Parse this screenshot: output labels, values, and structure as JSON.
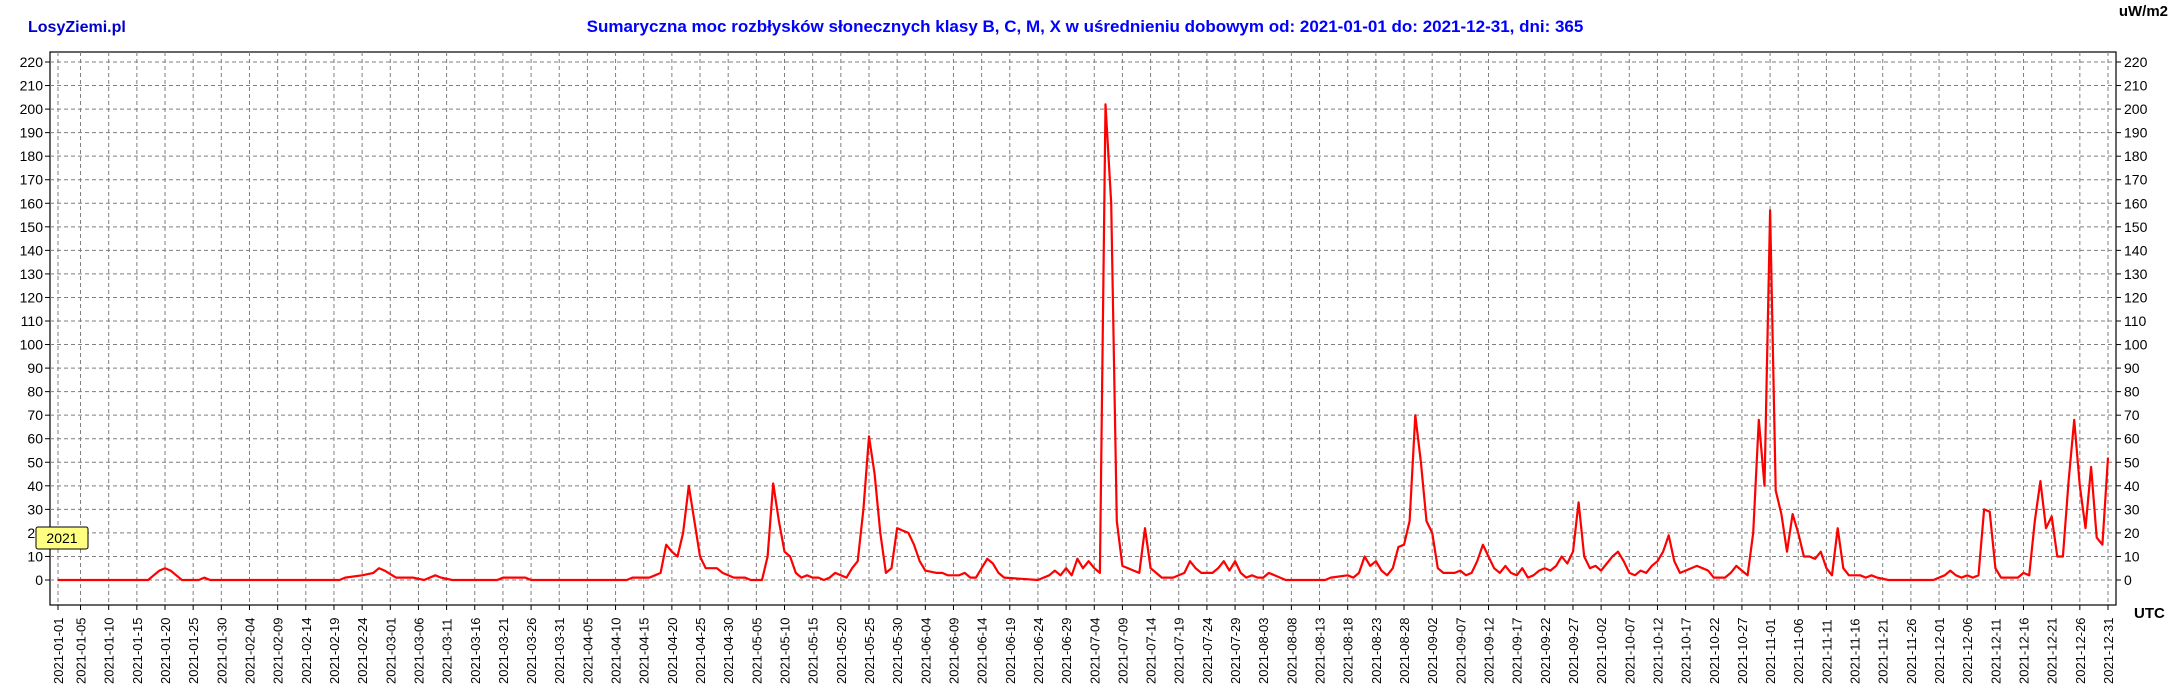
{
  "header": {
    "brand": "LosyZiemi.pl",
    "title": "Sumaryczna moc rozbłysków słonecznych klasy B, C, M, X w uśrednieniu dobowym od: 2021-01-01 do: 2021-12-31, dni: 365",
    "unit": "uW/m2",
    "x_unit": "UTC",
    "year_badge": "2021"
  },
  "colors": {
    "brand": "#0000cc",
    "title": "#0000ff",
    "line": "#ff0000",
    "badge": "#ffff80",
    "grid": "#7f7f7f"
  },
  "chart_data": {
    "type": "line",
    "title": "Sumaryczna moc rozbłysków słonecznych klasy B, C, M, X w uśrednieniu dobowym od: 2021-01-01 do: 2021-12-31, dni: 365",
    "xlabel": "UTC",
    "ylabel": "uW/m2",
    "ylim": [
      0,
      220
    ],
    "yticks": [
      0,
      10,
      20,
      30,
      40,
      50,
      60,
      70,
      80,
      90,
      100,
      110,
      120,
      130,
      140,
      150,
      160,
      170,
      180,
      190,
      200,
      210,
      220
    ],
    "grid": true,
    "xlim": [
      "2021-01-01",
      "2021-12-31"
    ],
    "xtick_labels": [
      "2021-01-01",
      "2021-01-05",
      "2021-01-10",
      "2021-01-15",
      "2021-01-20",
      "2021-01-25",
      "2021-01-30",
      "2021-02-04",
      "2021-02-09",
      "2021-02-14",
      "2021-02-19",
      "2021-02-24",
      "2021-03-01",
      "2021-03-06",
      "2021-03-11",
      "2021-03-16",
      "2021-03-21",
      "2021-03-26",
      "2021-03-31",
      "2021-04-05",
      "2021-04-10",
      "2021-04-15",
      "2021-04-20",
      "2021-04-25",
      "2021-04-30",
      "2021-05-05",
      "2021-05-10",
      "2021-05-15",
      "2021-05-20",
      "2021-05-25",
      "2021-05-30",
      "2021-06-04",
      "2021-06-09",
      "2021-06-14",
      "2021-06-19",
      "2021-06-24",
      "2021-06-29",
      "2021-07-04",
      "2021-07-09",
      "2021-07-14",
      "2021-07-19",
      "2021-07-24",
      "2021-07-29",
      "2021-08-03",
      "2021-08-08",
      "2021-08-13",
      "2021-08-18",
      "2021-08-23",
      "2021-08-28",
      "2021-09-02",
      "2021-09-07",
      "2021-09-12",
      "2021-09-17",
      "2021-09-22",
      "2021-09-27",
      "2021-10-02",
      "2021-10-07",
      "2021-10-12",
      "2021-10-17",
      "2021-10-22",
      "2021-10-27",
      "2021-11-01",
      "2021-11-06",
      "2021-11-11",
      "2021-11-16",
      "2021-11-21",
      "2021-11-26",
      "2021-12-01",
      "2021-12-06",
      "2021-12-11",
      "2021-12-16",
      "2021-12-21",
      "2021-12-26",
      "2021-12-31"
    ],
    "series": [
      {
        "points": [
          [
            "2021-01-01",
            0
          ],
          [
            "2021-01-17",
            0
          ],
          [
            "2021-01-18",
            2
          ],
          [
            "2021-01-19",
            4
          ],
          [
            "2021-01-20",
            5
          ],
          [
            "2021-01-21",
            4
          ],
          [
            "2021-01-22",
            2
          ],
          [
            "2021-01-23",
            0
          ],
          [
            "2021-01-26",
            0
          ],
          [
            "2021-01-27",
            1
          ],
          [
            "2021-01-28",
            0
          ],
          [
            "2021-02-20",
            0
          ],
          [
            "2021-02-21",
            1
          ],
          [
            "2021-02-24",
            2
          ],
          [
            "2021-02-26",
            3
          ],
          [
            "2021-02-27",
            5
          ],
          [
            "2021-02-28",
            4
          ],
          [
            "2021-03-02",
            1
          ],
          [
            "2021-03-05",
            1
          ],
          [
            "2021-03-07",
            0
          ],
          [
            "2021-03-09",
            2
          ],
          [
            "2021-03-10",
            1
          ],
          [
            "2021-03-12",
            0
          ],
          [
            "2021-03-20",
            0
          ],
          [
            "2021-03-21",
            1
          ],
          [
            "2021-03-25",
            1
          ],
          [
            "2021-03-26",
            0
          ],
          [
            "2021-04-12",
            0
          ],
          [
            "2021-04-13",
            1
          ],
          [
            "2021-04-16",
            1
          ],
          [
            "2021-04-17",
            2
          ],
          [
            "2021-04-18",
            3
          ],
          [
            "2021-04-19",
            15
          ],
          [
            "2021-04-20",
            12
          ],
          [
            "2021-04-21",
            10
          ],
          [
            "2021-04-22",
            20
          ],
          [
            "2021-04-23",
            40
          ],
          [
            "2021-04-24",
            25
          ],
          [
            "2021-04-25",
            10
          ],
          [
            "2021-04-26",
            5
          ],
          [
            "2021-04-28",
            5
          ],
          [
            "2021-04-29",
            3
          ],
          [
            "2021-04-30",
            2
          ],
          [
            "2021-05-01",
            1
          ],
          [
            "2021-05-03",
            1
          ],
          [
            "2021-05-04",
            0
          ],
          [
            "2021-05-06",
            0
          ],
          [
            "2021-05-07",
            10
          ],
          [
            "2021-05-08",
            41
          ],
          [
            "2021-05-09",
            25
          ],
          [
            "2021-05-10",
            12
          ],
          [
            "2021-05-11",
            10
          ],
          [
            "2021-05-12",
            3
          ],
          [
            "2021-05-13",
            1
          ],
          [
            "2021-05-14",
            2
          ],
          [
            "2021-05-15",
            1
          ],
          [
            "2021-05-16",
            1
          ],
          [
            "2021-05-17",
            0
          ],
          [
            "2021-05-18",
            1
          ],
          [
            "2021-05-19",
            3
          ],
          [
            "2021-05-20",
            2
          ],
          [
            "2021-05-21",
            1
          ],
          [
            "2021-05-22",
            5
          ],
          [
            "2021-05-23",
            8
          ],
          [
            "2021-05-24",
            30
          ],
          [
            "2021-05-25",
            61
          ],
          [
            "2021-05-26",
            45
          ],
          [
            "2021-05-27",
            20
          ],
          [
            "2021-05-28",
            3
          ],
          [
            "2021-05-29",
            5
          ],
          [
            "2021-05-30",
            22
          ],
          [
            "2021-05-31",
            21
          ],
          [
            "2021-06-01",
            20
          ],
          [
            "2021-06-02",
            15
          ],
          [
            "2021-06-03",
            8
          ],
          [
            "2021-06-04",
            4
          ],
          [
            "2021-06-06",
            3
          ],
          [
            "2021-06-07",
            3
          ],
          [
            "2021-06-08",
            2
          ],
          [
            "2021-06-10",
            2
          ],
          [
            "2021-06-11",
            3
          ],
          [
            "2021-06-12",
            1
          ],
          [
            "2021-06-13",
            1
          ],
          [
            "2021-06-14",
            5
          ],
          [
            "2021-06-15",
            9
          ],
          [
            "2021-06-16",
            7
          ],
          [
            "2021-06-17",
            3
          ],
          [
            "2021-06-18",
            1
          ],
          [
            "2021-06-24",
            0
          ],
          [
            "2021-06-26",
            2
          ],
          [
            "2021-06-27",
            4
          ],
          [
            "2021-06-28",
            2
          ],
          [
            "2021-06-29",
            5
          ],
          [
            "2021-06-30",
            2
          ],
          [
            "2021-07-01",
            9
          ],
          [
            "2021-07-02",
            5
          ],
          [
            "2021-07-03",
            8
          ],
          [
            "2021-07-04",
            5
          ],
          [
            "2021-07-05",
            3
          ],
          [
            "2021-07-06",
            202
          ],
          [
            "2021-07-07",
            160
          ],
          [
            "2021-07-08",
            25
          ],
          [
            "2021-07-09",
            6
          ],
          [
            "2021-07-11",
            4
          ],
          [
            "2021-07-12",
            3
          ],
          [
            "2021-07-13",
            22
          ],
          [
            "2021-07-14",
            5
          ],
          [
            "2021-07-15",
            3
          ],
          [
            "2021-07-16",
            1
          ],
          [
            "2021-07-18",
            1
          ],
          [
            "2021-07-20",
            3
          ],
          [
            "2021-07-21",
            8
          ],
          [
            "2021-07-22",
            5
          ],
          [
            "2021-07-23",
            3
          ],
          [
            "2021-07-25",
            3
          ],
          [
            "2021-07-26",
            5
          ],
          [
            "2021-07-27",
            8
          ],
          [
            "2021-07-28",
            4
          ],
          [
            "2021-07-29",
            8
          ],
          [
            "2021-07-30",
            3
          ],
          [
            "2021-07-31",
            1
          ],
          [
            "2021-08-01",
            2
          ],
          [
            "2021-08-02",
            1
          ],
          [
            "2021-08-03",
            1
          ],
          [
            "2021-08-04",
            3
          ],
          [
            "2021-08-05",
            2
          ],
          [
            "2021-08-06",
            1
          ],
          [
            "2021-08-07",
            0
          ],
          [
            "2021-08-14",
            0
          ],
          [
            "2021-08-15",
            1
          ],
          [
            "2021-08-18",
            2
          ],
          [
            "2021-08-19",
            1
          ],
          [
            "2021-08-20",
            3
          ],
          [
            "2021-08-21",
            10
          ],
          [
            "2021-08-22",
            6
          ],
          [
            "2021-08-23",
            8
          ],
          [
            "2021-08-24",
            4
          ],
          [
            "2021-08-25",
            2
          ],
          [
            "2021-08-26",
            5
          ],
          [
            "2021-08-27",
            14
          ],
          [
            "2021-08-28",
            15
          ],
          [
            "2021-08-29",
            25
          ],
          [
            "2021-08-30",
            70
          ],
          [
            "2021-08-31",
            50
          ],
          [
            "2021-09-01",
            25
          ],
          [
            "2021-09-02",
            20
          ],
          [
            "2021-09-03",
            5
          ],
          [
            "2021-09-04",
            3
          ],
          [
            "2021-09-06",
            3
          ],
          [
            "2021-09-07",
            4
          ],
          [
            "2021-09-08",
            2
          ],
          [
            "2021-09-09",
            3
          ],
          [
            "2021-09-10",
            8
          ],
          [
            "2021-09-11",
            15
          ],
          [
            "2021-09-12",
            10
          ],
          [
            "2021-09-13",
            5
          ],
          [
            "2021-09-14",
            3
          ],
          [
            "2021-09-15",
            6
          ],
          [
            "2021-09-16",
            3
          ],
          [
            "2021-09-17",
            2
          ],
          [
            "2021-09-18",
            5
          ],
          [
            "2021-09-19",
            1
          ],
          [
            "2021-09-20",
            2
          ],
          [
            "2021-09-21",
            4
          ],
          [
            "2021-09-22",
            5
          ],
          [
            "2021-09-23",
            4
          ],
          [
            "2021-09-24",
            6
          ],
          [
            "2021-09-25",
            10
          ],
          [
            "2021-09-26",
            7
          ],
          [
            "2021-09-27",
            12
          ],
          [
            "2021-09-28",
            33
          ],
          [
            "2021-09-29",
            10
          ],
          [
            "2021-09-30",
            5
          ],
          [
            "2021-10-01",
            6
          ],
          [
            "2021-10-02",
            4
          ],
          [
            "2021-10-03",
            7
          ],
          [
            "2021-10-04",
            10
          ],
          [
            "2021-10-05",
            12
          ],
          [
            "2021-10-06",
            8
          ],
          [
            "2021-10-07",
            3
          ],
          [
            "2021-10-08",
            2
          ],
          [
            "2021-10-09",
            4
          ],
          [
            "2021-10-10",
            3
          ],
          [
            "2021-10-11",
            6
          ],
          [
            "2021-10-12",
            8
          ],
          [
            "2021-10-13",
            12
          ],
          [
            "2021-10-14",
            19
          ],
          [
            "2021-10-15",
            8
          ],
          [
            "2021-10-16",
            3
          ],
          [
            "2021-10-17",
            4
          ],
          [
            "2021-10-18",
            5
          ],
          [
            "2021-10-19",
            6
          ],
          [
            "2021-10-20",
            5
          ],
          [
            "2021-10-21",
            4
          ],
          [
            "2021-10-22",
            1
          ],
          [
            "2021-10-24",
            1
          ],
          [
            "2021-10-25",
            3
          ],
          [
            "2021-10-26",
            6
          ],
          [
            "2021-10-27",
            4
          ],
          [
            "2021-10-28",
            2
          ],
          [
            "2021-10-29",
            20
          ],
          [
            "2021-10-30",
            68
          ],
          [
            "2021-10-31",
            40
          ],
          [
            "2021-11-01",
            157
          ],
          [
            "2021-11-02",
            38
          ],
          [
            "2021-11-03",
            28
          ],
          [
            "2021-11-04",
            12
          ],
          [
            "2021-11-05",
            28
          ],
          [
            "2021-11-06",
            20
          ],
          [
            "2021-11-07",
            10
          ],
          [
            "2021-11-08",
            10
          ],
          [
            "2021-11-09",
            9
          ],
          [
            "2021-11-10",
            12
          ],
          [
            "2021-11-11",
            5
          ],
          [
            "2021-11-12",
            2
          ],
          [
            "2021-11-13",
            22
          ],
          [
            "2021-11-14",
            5
          ],
          [
            "2021-11-15",
            2
          ],
          [
            "2021-11-17",
            2
          ],
          [
            "2021-11-18",
            1
          ],
          [
            "2021-11-19",
            2
          ],
          [
            "2021-11-20",
            1
          ],
          [
            "2021-11-22",
            0
          ],
          [
            "2021-11-30",
            0
          ],
          [
            "2021-12-01",
            1
          ],
          [
            "2021-12-02",
            2
          ],
          [
            "2021-12-03",
            4
          ],
          [
            "2021-12-04",
            2
          ],
          [
            "2021-12-05",
            1
          ],
          [
            "2021-12-06",
            2
          ],
          [
            "2021-12-07",
            1
          ],
          [
            "2021-12-08",
            2
          ],
          [
            "2021-12-09",
            30
          ],
          [
            "2021-12-10",
            29
          ],
          [
            "2021-12-11",
            5
          ],
          [
            "2021-12-12",
            1
          ],
          [
            "2021-12-15",
            1
          ],
          [
            "2021-12-16",
            3
          ],
          [
            "2021-12-17",
            2
          ],
          [
            "2021-12-18",
            25
          ],
          [
            "2021-12-19",
            42
          ],
          [
            "2021-12-20",
            22
          ],
          [
            "2021-12-21",
            27
          ],
          [
            "2021-12-22",
            10
          ],
          [
            "2021-12-23",
            10
          ],
          [
            "2021-12-24",
            42
          ],
          [
            "2021-12-25",
            68
          ],
          [
            "2021-12-26",
            40
          ],
          [
            "2021-12-27",
            22
          ],
          [
            "2021-12-28",
            48
          ],
          [
            "2021-12-29",
            18
          ],
          [
            "2021-12-30",
            15
          ],
          [
            "2021-12-31",
            52
          ]
        ]
      }
    ]
  }
}
